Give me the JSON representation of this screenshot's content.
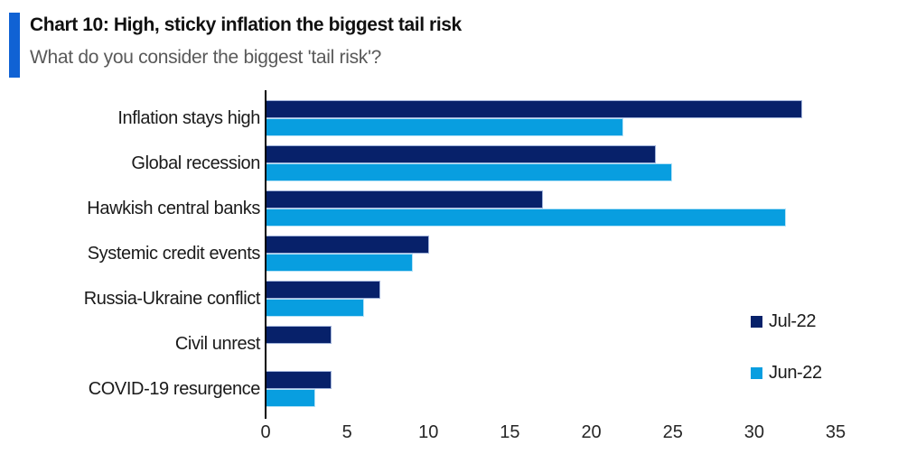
{
  "header": {
    "title": "Chart 10: High, sticky inflation the biggest tail risk",
    "subtitle": "What do you consider the biggest 'tail risk'?"
  },
  "legend": {
    "items": [
      {
        "label": "Jul-22",
        "color": "#07216a"
      },
      {
        "label": "Jun-22",
        "color": "#089ee0"
      }
    ]
  },
  "colors": {
    "accent_bar": "#1062d4",
    "jul22_navy": "#07216a",
    "jun22_azure": "#089ee0",
    "subtitle_text": "#595959",
    "axis_line": "#000000"
  },
  "chart_data": {
    "type": "bar",
    "orientation": "horizontal",
    "title": "Chart 10: High, sticky inflation the biggest tail risk",
    "subtitle": "What do you consider the biggest 'tail risk'?",
    "categories": [
      "Inflation stays high",
      "Global recession",
      "Hawkish central banks",
      "Systemic credit events",
      "Russia-Ukraine conflict",
      "Civil unrest",
      "COVID-19 resurgence"
    ],
    "series": [
      {
        "name": "Jul-22",
        "color": "#07216a",
        "values": [
          33,
          24,
          17,
          10,
          7,
          4,
          4
        ]
      },
      {
        "name": "Jun-22",
        "color": "#089ee0",
        "values": [
          22,
          25,
          32,
          9,
          6,
          0,
          3
        ]
      }
    ],
    "x_ticks": [
      0,
      5,
      10,
      15,
      20,
      25,
      30,
      35
    ],
    "xlim": [
      0,
      35
    ],
    "xlabel": "",
    "ylabel": "",
    "grid": false,
    "legend_position": "right-middle"
  }
}
